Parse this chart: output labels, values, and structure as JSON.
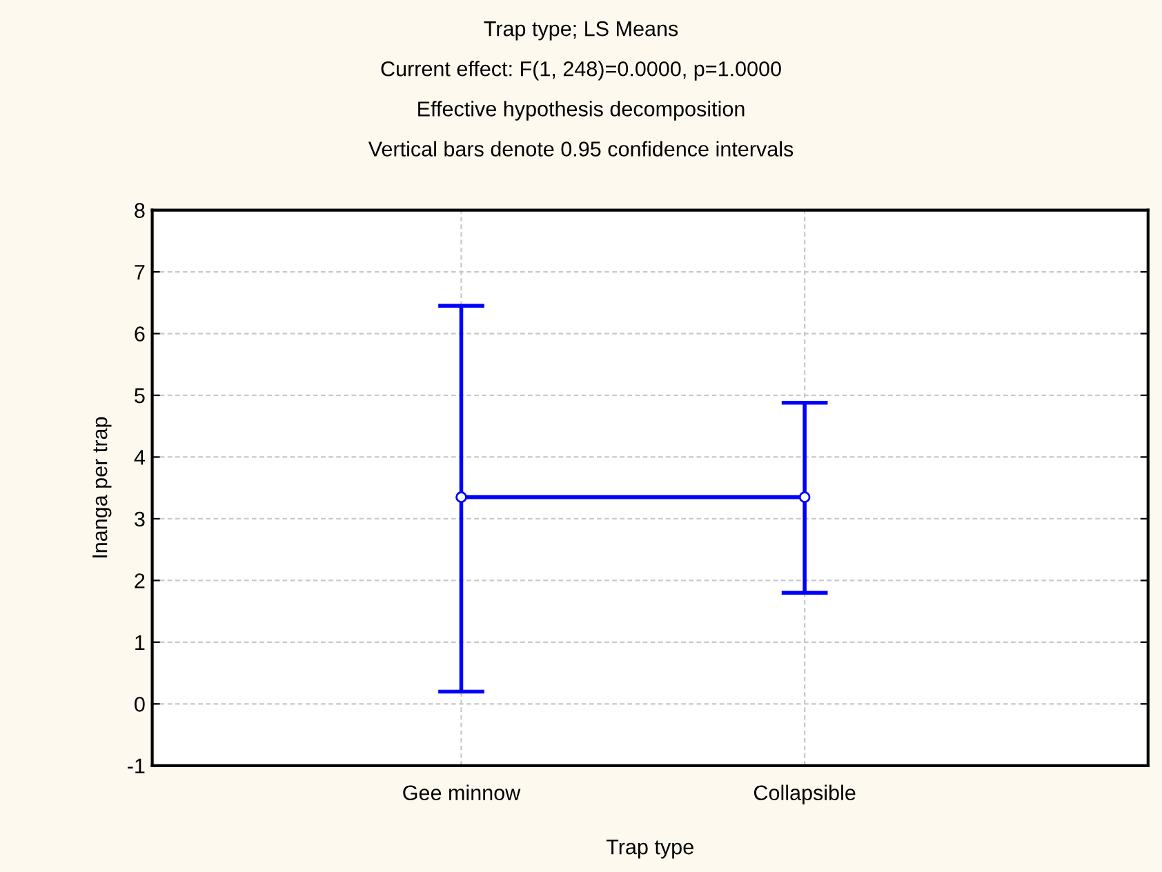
{
  "chart_data": {
    "type": "line",
    "title": "Trap type; LS Means",
    "subtitle": "Current effect: F(1, 248)=0.0000, p=1.0000",
    "annotations": [
      "Effective hypothesis decomposition",
      "Vertical bars denote 0.95 confidence intervals"
    ],
    "xlabel": "Trap type",
    "ylabel": "Inanga per trap",
    "categories": [
      "Gee minnow",
      "Collapsible"
    ],
    "series": [
      {
        "color": "#0000ff",
        "values": [
          3.35,
          3.35
        ],
        "errors": [
          [
            0.2,
            6.45
          ],
          [
            1.8,
            4.88
          ]
        ]
      }
    ],
    "ylim": [
      -1,
      8
    ],
    "yticks": [
      -1,
      0,
      1,
      2,
      3,
      4,
      5,
      6,
      7,
      8
    ],
    "grid": true,
    "marker": "circle",
    "line_style": "solid",
    "legend": false
  }
}
